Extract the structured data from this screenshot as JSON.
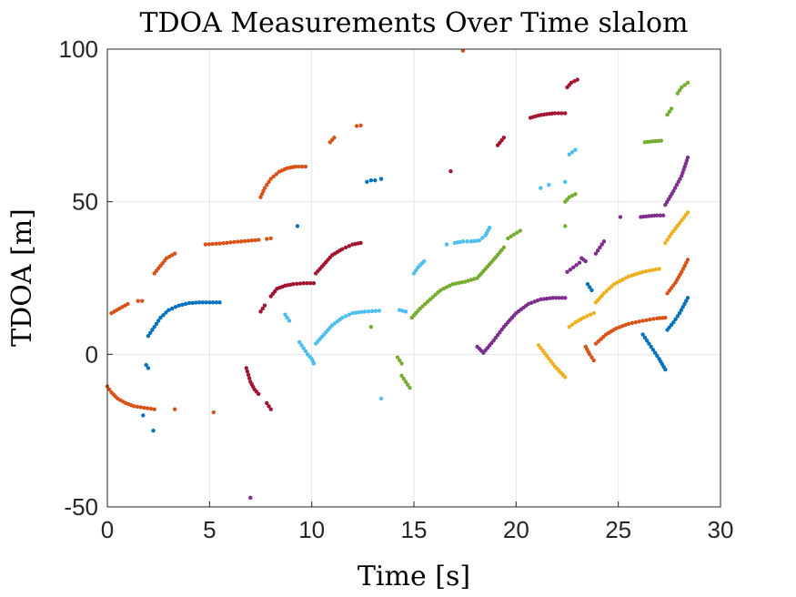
{
  "chart_data": {
    "type": "scatter",
    "title": "TDOA Measurements Over Time slalom",
    "xlabel": "Time [s]",
    "ylabel": "TDOA [m]",
    "xlim": [
      0,
      30
    ],
    "ylim": [
      -50,
      100
    ],
    "xticks": [
      0,
      5,
      10,
      15,
      20,
      25,
      30
    ],
    "yticks": [
      -50,
      0,
      50,
      100
    ],
    "grid": true,
    "series": [
      {
        "color": "#0072BD",
        "segments": [
          {
            "x": [
              2.0,
              2.3,
              2.6,
              3.0,
              3.5,
              4.0,
              4.5,
              5.0,
              5.5
            ],
            "y": [
              6,
              9,
              12,
              14.5,
              16,
              16.8,
              17,
              17,
              17
            ]
          },
          {
            "x": [
              1.9,
              2.0
            ],
            "y": [
              -3.5,
              -4.5
            ]
          },
          {
            "x": [
              1.75
            ],
            "y": [
              -20
            ]
          },
          {
            "x": [
              2.25
            ],
            "y": [
              -25
            ]
          },
          {
            "x": [
              9.3
            ],
            "y": [
              42
            ]
          },
          {
            "x": [
              12.7,
              12.9,
              13.1
            ],
            "y": [
              56.5,
              57,
              57
            ]
          },
          {
            "x": [
              13.4
            ],
            "y": [
              57.5
            ]
          },
          {
            "x": [
              23.5,
              23.7
            ],
            "y": [
              23,
              21
            ]
          },
          {
            "x": [
              26.2,
              26.6,
              27.0,
              27.3
            ],
            "y": [
              6.5,
              2.5,
              -1.5,
              -5
            ]
          },
          {
            "x": [
              27.4,
              27.7,
              28.0,
              28.4
            ],
            "y": [
              8,
              10.5,
              13.5,
              18.5
            ]
          }
        ]
      },
      {
        "color": "#D95319",
        "segments": [
          {
            "x": [
              0.0,
              0.2,
              0.5,
              0.9,
              1.3,
              1.8,
              2.3
            ],
            "y": [
              -10.5,
              -12.5,
              -14.5,
              -16,
              -17,
              -17.5,
              -18
            ]
          },
          {
            "x": [
              3.3
            ],
            "y": [
              -18
            ]
          },
          {
            "x": [
              5.2
            ],
            "y": [
              -19
            ]
          },
          {
            "x": [
              0.2,
              0.6,
              1.0
            ],
            "y": [
              13.5,
              15,
              16.5
            ]
          },
          {
            "x": [
              1.5,
              1.7
            ],
            "y": [
              17.5,
              17.5
            ]
          },
          {
            "x": [
              2.3,
              2.6,
              2.9,
              3.3
            ],
            "y": [
              26.5,
              29,
              31.5,
              33
            ]
          },
          {
            "x": [
              4.8,
              5.5,
              6.2,
              6.9,
              7.4
            ],
            "y": [
              36,
              36.3,
              36.8,
              37.2,
              37.5
            ]
          },
          {
            "x": [
              7.8,
              8.0
            ],
            "y": [
              37.8,
              38
            ]
          },
          {
            "x": [
              7.5,
              7.7,
              8.0,
              8.4,
              8.8,
              9.2,
              9.7
            ],
            "y": [
              51.5,
              54.5,
              57.5,
              59.8,
              61,
              61.5,
              61.5
            ]
          },
          {
            "x": [
              10.9,
              11.1
            ],
            "y": [
              69.5,
              71
            ]
          },
          {
            "x": [
              12.2,
              12.4
            ],
            "y": [
              74.8,
              75
            ]
          },
          {
            "x": [
              17.4
            ],
            "y": [
              99.5
            ]
          },
          {
            "x": [
              23.4,
              23.6,
              23.8
            ],
            "y": [
              2.5,
              0,
              -2
            ]
          },
          {
            "x": [
              23.9,
              24.4,
              24.9,
              25.5,
              26.2,
              26.9,
              27.3
            ],
            "y": [
              3.5,
              6.5,
              8.5,
              10,
              11,
              11.8,
              12
            ]
          },
          {
            "x": [
              27.4,
              27.8,
              28.1,
              28.4
            ],
            "y": [
              20,
              23.5,
              27,
              31
            ]
          }
        ]
      },
      {
        "color": "#EDB120",
        "segments": [
          {
            "x": [
              21.1,
              21.5,
              21.9,
              22.4
            ],
            "y": [
              3,
              -0.5,
              -4,
              -7.5
            ]
          },
          {
            "x": [
              22.6,
              22.9,
              23.3,
              23.8
            ],
            "y": [
              9,
              10.5,
              12,
              13.5
            ]
          },
          {
            "x": [
              23.9,
              24.3,
              24.8,
              25.5,
              26.2,
              27.0
            ],
            "y": [
              17,
              20,
              23,
              25.5,
              27,
              28
            ]
          },
          {
            "x": [
              27.3,
              27.6,
              28.0,
              28.4
            ],
            "y": [
              36.5,
              39.5,
              43,
              46.5
            ]
          }
        ]
      },
      {
        "color": "#7E2F8E",
        "segments": [
          {
            "x": [
              7.0
            ],
            "y": [
              -47
            ]
          },
          {
            "x": [
              18.1,
              18.4,
              18.9,
              19.4,
              20.0,
              20.6,
              21.2,
              21.8,
              22.4
            ],
            "y": [
              2.5,
              0.5,
              4.5,
              9,
              13.5,
              16.5,
              18,
              18.5,
              18.5
            ]
          },
          {
            "x": [
              22.5,
              22.8,
              23.1
            ],
            "y": [
              27,
              28.5,
              30
            ]
          },
          {
            "x": [
              23.2,
              23.4
            ],
            "y": [
              31.5,
              30.5
            ]
          },
          {
            "x": [
              23.9,
              24.1,
              24.3
            ],
            "y": [
              33,
              35,
              37
            ]
          },
          {
            "x": [
              25.1
            ],
            "y": [
              45
            ]
          },
          {
            "x": [
              26.1,
              26.5,
              26.9,
              27.2
            ],
            "y": [
              45,
              45.3,
              45.5,
              45.5
            ]
          },
          {
            "x": [
              27.3,
              27.7,
              28.1,
              28.4
            ],
            "y": [
              49,
              53.5,
              58.5,
              64.5
            ]
          }
        ]
      },
      {
        "color": "#77AC30",
        "segments": [
          {
            "x": [
              12.9
            ],
            "y": [
              9
            ]
          },
          {
            "x": [
              14.2,
              14.4
            ],
            "y": [
              -1,
              -3
            ]
          },
          {
            "x": [
              14.4,
              14.6,
              14.8
            ],
            "y": [
              -7,
              -9,
              -11
            ]
          },
          {
            "x": [
              14.9,
              15.3,
              15.8,
              16.3,
              16.9,
              17.5,
              18.1,
              18.5,
              18.9,
              19.4
            ],
            "y": [
              12,
              15,
              18,
              21,
              23,
              23.8,
              25,
              28,
              31,
              35
            ]
          },
          {
            "x": [
              19.6,
              19.9,
              20.2
            ],
            "y": [
              38,
              39.3,
              40.5
            ]
          },
          {
            "x": [
              22.4,
              22.6,
              22.9
            ],
            "y": [
              50,
              51.5,
              52.5
            ]
          },
          {
            "x": [
              22.4
            ],
            "y": [
              42
            ]
          },
          {
            "x": [
              26.3,
              26.7,
              27.1
            ],
            "y": [
              69.5,
              69.8,
              70
            ]
          },
          {
            "x": [
              27.4,
              27.6
            ],
            "y": [
              78.5,
              80.5
            ]
          },
          {
            "x": [
              27.9,
              28.1,
              28.4
            ],
            "y": [
              85.5,
              87.5,
              89
            ]
          }
        ]
      },
      {
        "color": "#4DBEEE",
        "segments": [
          {
            "x": [
              8.7,
              8.9
            ],
            "y": [
              13,
              11
            ]
          },
          {
            "x": [
              9.4,
              9.6,
              9.8,
              10.0,
              10.1
            ],
            "y": [
              4,
              2,
              0,
              -1.5,
              -3
            ]
          },
          {
            "x": [
              10.2,
              10.6,
              11.0,
              11.5,
              12.0,
              12.6,
              13.3
            ],
            "y": [
              3.5,
              6.5,
              9.5,
              12,
              13.5,
              14,
              14.3
            ]
          },
          {
            "x": [
              13.4
            ],
            "y": [
              -14.5
            ]
          },
          {
            "x": [
              14.3,
              14.6
            ],
            "y": [
              14.5,
              14
            ]
          },
          {
            "x": [
              15.0,
              15.2,
              15.5
            ],
            "y": [
              26.5,
              28.5,
              30.5
            ]
          },
          {
            "x": [
              16.6
            ],
            "y": [
              36
            ]
          },
          {
            "x": [
              17.0,
              17.4,
              17.8,
              18.2,
              18.5,
              18.7
            ],
            "y": [
              36.5,
              37,
              37,
              37.3,
              39,
              41.5
            ]
          },
          {
            "x": [
              21.2
            ],
            "y": [
              54.5
            ]
          },
          {
            "x": [
              21.6
            ],
            "y": [
              55.5
            ]
          },
          {
            "x": [
              22.4
            ],
            "y": [
              56.5
            ]
          },
          {
            "x": [
              22.6,
              22.9
            ],
            "y": [
              65.5,
              67
            ]
          }
        ]
      },
      {
        "color": "#A2142F",
        "segments": [
          {
            "x": [
              6.8,
              7.0,
              7.2,
              7.4
            ],
            "y": [
              -4.5,
              -9,
              -11.5,
              -13
            ]
          },
          {
            "x": [
              7.8,
              8.0
            ],
            "y": [
              -16,
              -18
            ]
          },
          {
            "x": [
              7.5,
              7.7
            ],
            "y": [
              14,
              16
            ]
          },
          {
            "x": [
              8.0,
              8.3,
              8.7,
              9.1,
              9.6,
              10.1
            ],
            "y": [
              19,
              21.5,
              22.5,
              23,
              23.3,
              23.3
            ]
          },
          {
            "x": [
              10.2,
              10.6,
              11.0,
              11.5,
              12.0,
              12.4
            ],
            "y": [
              26.5,
              29.5,
              32.5,
              34.5,
              36,
              36.5
            ]
          },
          {
            "x": [
              16.8
            ],
            "y": [
              60
            ]
          },
          {
            "x": [
              19.1,
              19.4
            ],
            "y": [
              68.5,
              71
            ]
          },
          {
            "x": [
              20.7,
              21.1,
              21.5,
              21.9,
              22.4
            ],
            "y": [
              77.5,
              78.3,
              78.7,
              79,
              79
            ]
          },
          {
            "x": [
              22.5,
              22.7,
              23.0
            ],
            "y": [
              87.5,
              89,
              90
            ]
          }
        ]
      }
    ]
  }
}
